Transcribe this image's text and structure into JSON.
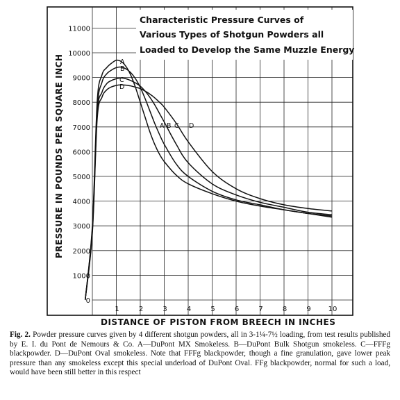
{
  "chart_data": {
    "type": "line",
    "title_lines": [
      "Characteristic Pressure Curves of",
      "Various Types of Shotgun Powders all",
      "Loaded to Develop the Same Muzzle Energy"
    ],
    "xlabel": "DISTANCE OF PISTON FROM BREECH IN INCHES",
    "ylabel": "PRESSURE IN POUNDS PER SQUARE INCH",
    "xlim": [
      0,
      10
    ],
    "ylim": [
      0,
      11000
    ],
    "x_ticks": [
      "1",
      "2",
      "3",
      "4",
      "5",
      "6",
      "7",
      "8",
      "9",
      "10"
    ],
    "y_ticks": [
      "0",
      "1000",
      "2000",
      "3000",
      "4000",
      "5000",
      "6000",
      "7000",
      "8000",
      "9000",
      "10000",
      "11000"
    ],
    "grid": true,
    "series": [
      {
        "name": "A",
        "x": [
          -0.3,
          0,
          0.2,
          0.4,
          0.6,
          0.8,
          1.0,
          1.2,
          1.4,
          1.6,
          1.8,
          2.0,
          2.2,
          2.4,
          2.6,
          2.8,
          3.0,
          3.5,
          4.0,
          5.0,
          6.0,
          7.0,
          8.0,
          9.0,
          10.0
        ],
        "y": [
          0,
          3000,
          8000,
          9100,
          9400,
          9580,
          9700,
          9650,
          9450,
          9100,
          8600,
          8000,
          7400,
          6800,
          6300,
          5900,
          5600,
          5050,
          4700,
          4300,
          4000,
          3800,
          3650,
          3500,
          3400
        ]
      },
      {
        "name": "B",
        "x": [
          -0.3,
          0,
          0.2,
          0.4,
          0.6,
          0.8,
          1.0,
          1.2,
          1.4,
          1.6,
          1.8,
          2.0,
          2.2,
          2.4,
          2.6,
          2.8,
          3.0,
          3.5,
          4.0,
          5.0,
          6.0,
          7.0,
          8.0,
          9.0,
          10.0
        ],
        "y": [
          0,
          2900,
          7700,
          8800,
          9150,
          9300,
          9400,
          9420,
          9350,
          9200,
          8950,
          8600,
          8150,
          7650,
          7150,
          6700,
          6300,
          5500,
          5000,
          4400,
          4050,
          3850,
          3650,
          3500,
          3350
        ]
      },
      {
        "name": "C",
        "x": [
          -0.3,
          0,
          0.2,
          0.4,
          0.6,
          0.8,
          1.0,
          1.2,
          1.4,
          1.6,
          1.8,
          2.0,
          2.2,
          2.4,
          2.6,
          2.8,
          3.0,
          3.5,
          4.0,
          5.0,
          6.0,
          7.0,
          8.0,
          9.0,
          10.0
        ],
        "y": [
          0,
          2800,
          7500,
          8400,
          8750,
          8880,
          8950,
          8980,
          8950,
          8880,
          8780,
          8650,
          8450,
          8200,
          7900,
          7550,
          7200,
          6300,
          5550,
          4700,
          4250,
          3950,
          3750,
          3550,
          3450
        ]
      },
      {
        "name": "D",
        "x": [
          -0.3,
          0,
          0.2,
          0.4,
          0.6,
          0.8,
          1.0,
          1.2,
          1.4,
          1.6,
          1.8,
          2.0,
          2.2,
          2.4,
          2.6,
          2.8,
          3.0,
          3.5,
          4.0,
          5.0,
          6.0,
          7.0,
          8.0,
          9.0,
          10.0
        ],
        "y": [
          0,
          2700,
          7300,
          8200,
          8500,
          8620,
          8680,
          8700,
          8690,
          8660,
          8610,
          8550,
          8450,
          8330,
          8180,
          8000,
          7800,
          7150,
          6400,
          5200,
          4500,
          4100,
          3850,
          3700,
          3600
        ]
      }
    ],
    "peak_labels": [
      "A",
      "B",
      "C",
      "D"
    ],
    "right_labels": [
      "A",
      "B",
      "C",
      "D"
    ]
  },
  "caption": {
    "fig_label": "Fig. 2.",
    "text": "Powder pressure curves given by 4 different shotgun powders, all in 3-1¼-7½ loading, from test results published by E. I. du Pont de Nemours & Co. A—DuPont MX Smokeless. B—DuPont Bulk Shotgun smokeless. C—FFFg blackpowder. D—DuPont Oval smokeless. Note that FFFg blackpowder, though a fine granulation, gave lower peak pressure than any smokeless except this special underload of DuPont Oval. FFg blackpowder, normal for such a load, would have been still better in this respect"
  }
}
